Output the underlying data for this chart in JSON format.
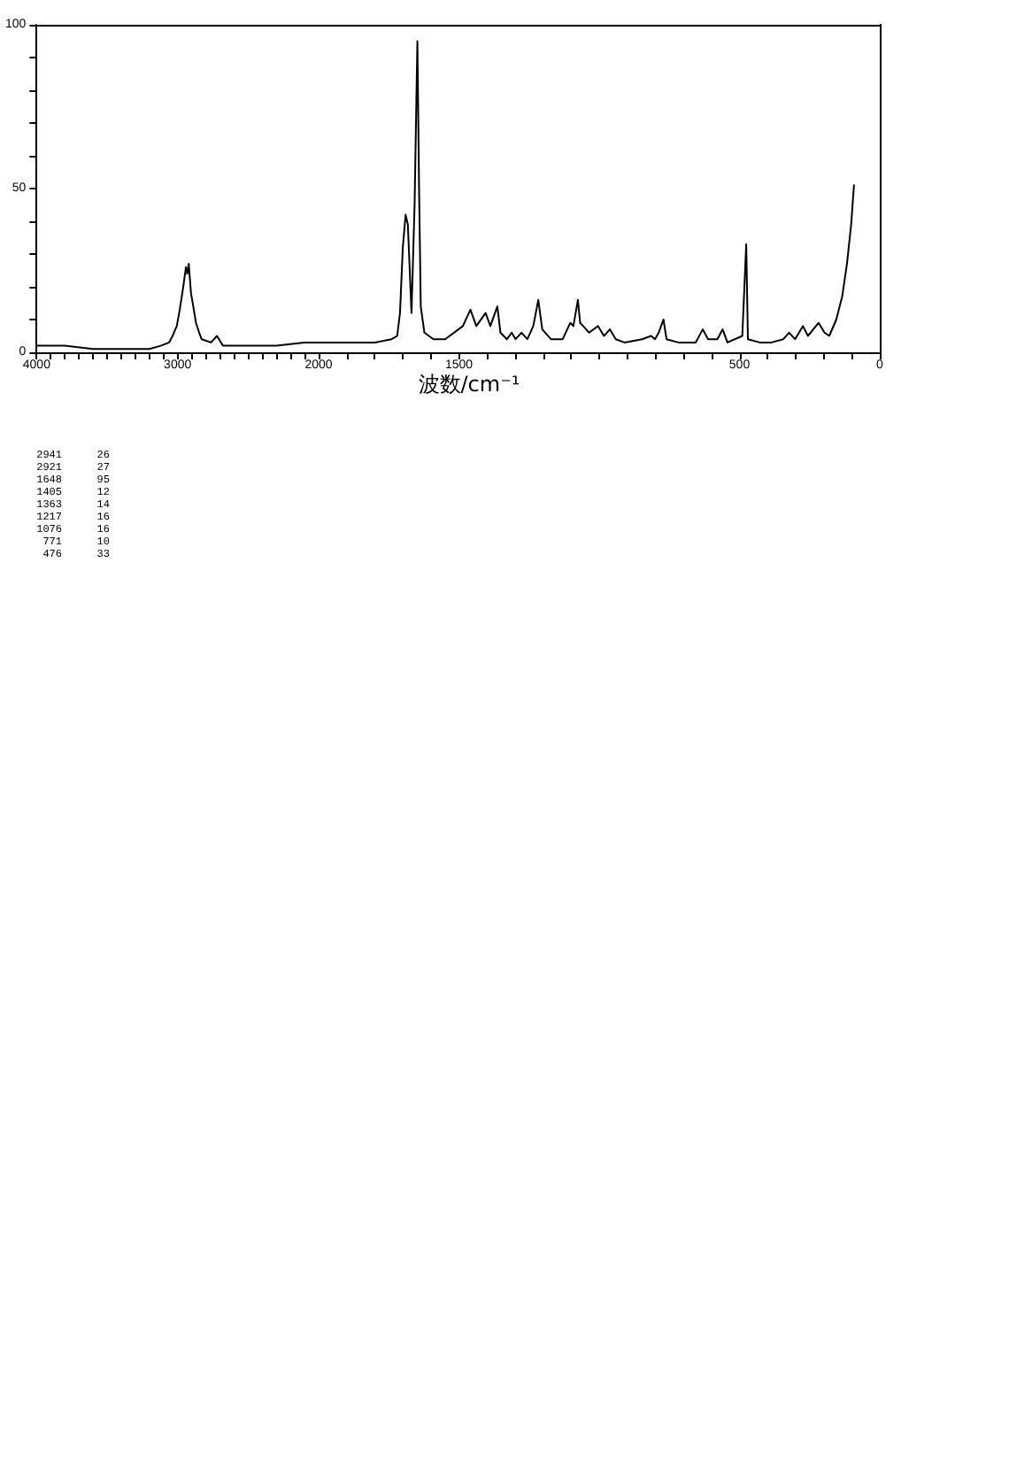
{
  "chart_data": [
    {
      "type": "line",
      "color": "#000000",
      "x": [
        4000,
        3800,
        3600,
        3400,
        3200,
        3120,
        3060,
        3036,
        3006,
        2985,
        2960,
        2941,
        2931,
        2921,
        2905,
        2889,
        2870,
        2847,
        2830,
        2763,
        2721,
        2679,
        2500,
        2300,
        2100,
        2000
      ],
      "values": [
        2,
        2,
        1,
        1,
        1,
        2,
        3,
        5,
        8,
        13,
        20,
        26,
        24,
        27,
        18,
        14,
        9,
        6,
        4,
        3,
        5,
        2,
        2,
        2,
        3,
        3
      ],
      "xlim": [
        4000,
        2000
      ],
      "xticks": [
        4000,
        {
          "value": 3900,
          "label": null
        },
        {
          "value": 3800,
          "label": null
        },
        {
          "value": 3700,
          "label": null
        },
        {
          "value": 3600,
          "label": null
        },
        {
          "value": 3500,
          "label": null
        },
        {
          "value": 3400,
          "label": null
        },
        {
          "value": 3300,
          "label": null
        },
        {
          "value": 3200,
          "label": null
        },
        {
          "value": 3100,
          "label": null
        },
        3000,
        {
          "value": 2900,
          "label": null
        },
        {
          "value": 2800,
          "label": null
        },
        {
          "value": 2700,
          "label": null
        },
        {
          "value": 2600,
          "label": null
        },
        {
          "value": 2500,
          "label": null
        },
        {
          "value": 2400,
          "label": null
        },
        {
          "value": 2300,
          "label": null
        },
        {
          "value": 2200,
          "label": null
        },
        {
          "value": 2100,
          "label": null
        },
        2000
      ],
      "ylim": [
        0,
        100
      ],
      "yticks": [
        0,
        {
          "value": 10,
          "label": null
        },
        {
          "value": 20,
          "label": null
        },
        {
          "value": 30,
          "label": null
        },
        {
          "value": 40,
          "label": null
        },
        50,
        {
          "value": 60,
          "label": null
        },
        {
          "value": 70,
          "label": null
        },
        {
          "value": 80,
          "label": null
        },
        {
          "value": 90,
          "label": null
        },
        100
      ],
      "annotations": [
        "2941 26",
        "2921 27",
        "1648 95",
        "1405 12",
        "1363 14",
        "1217 16",
        "1076 16",
        "771 10",
        "476 33"
      ]
    },
    {
      "type": "line",
      "color": "#000000",
      "xlabel": "波数/cm⁻¹",
      "x": [
        2000,
        1900,
        1800,
        1740,
        1720,
        1710,
        1700,
        1690,
        1682,
        1669,
        1658,
        1648,
        1642,
        1636,
        1623,
        1591,
        1549,
        1486,
        1459,
        1438,
        1405,
        1388,
        1363,
        1352,
        1329,
        1312,
        1298,
        1277,
        1256,
        1235,
        1217,
        1203,
        1172,
        1130,
        1103,
        1092,
        1076,
        1068,
        1057,
        1036,
        1004,
        983,
        962,
        941,
        910,
        847,
        815,
        801,
        788,
        771,
        760,
        718,
        656,
        631,
        612,
        579,
        560,
        543,
        490,
        476,
        470,
        428,
        386,
        344,
        323,
        302,
        274,
        256,
        218,
        197,
        180,
        155,
        134,
        117,
        102,
        92
      ],
      "values": [
        3,
        3,
        3,
        4,
        5,
        12,
        32,
        42,
        39,
        12,
        45,
        95,
        50,
        14,
        6,
        4,
        4,
        8,
        13,
        8,
        12,
        8,
        14,
        6,
        4,
        6,
        4,
        6,
        4,
        8,
        16,
        7,
        4,
        4,
        9,
        8,
        16,
        9,
        8,
        6,
        8,
        5,
        7,
        4,
        3,
        4,
        5,
        4,
        6,
        10,
        4,
        3,
        3,
        7,
        4,
        4,
        7,
        3,
        5,
        33,
        4,
        3,
        3,
        4,
        6,
        4,
        8,
        5,
        9,
        6,
        5,
        10,
        17,
        27,
        39,
        51
      ],
      "xlim": [
        2000,
        0
      ],
      "xticks": [
        {
          "value": 1900,
          "label": null
        },
        {
          "value": 1800,
          "label": null
        },
        {
          "value": 1700,
          "label": null
        },
        {
          "value": 1600,
          "label": null
        },
        1500,
        {
          "value": 1400,
          "label": null
        },
        {
          "value": 1300,
          "label": null
        },
        {
          "value": 1200,
          "label": null
        },
        {
          "value": 1100,
          "label": null
        },
        {
          "value": 1000,
          "label": null
        },
        {
          "value": 900,
          "label": null
        },
        {
          "value": 800,
          "label": null
        },
        {
          "value": 700,
          "label": null
        },
        {
          "value": 600,
          "label": null
        },
        500,
        {
          "value": 400,
          "label": null
        },
        {
          "value": 300,
          "label": null
        },
        {
          "value": 200,
          "label": null
        },
        {
          "value": 100,
          "label": null
        },
        0
      ],
      "ylim": [
        0,
        100
      ],
      "tick_labels": "x"
    }
  ]
}
